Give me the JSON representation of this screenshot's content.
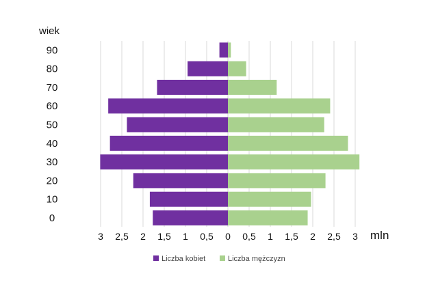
{
  "chart_data": {
    "type": "bar",
    "orientation": "horizontal-population-pyramid",
    "y_axis_title": "wiek",
    "x_unit_label": "mln",
    "categories": [
      "0",
      "10",
      "20",
      "30",
      "40",
      "50",
      "60",
      "70",
      "80",
      "90"
    ],
    "series": [
      {
        "name": "Liczba kobiet",
        "side": "left",
        "color": "#7030a0",
        "values": [
          1.77,
          1.84,
          2.23,
          3.01,
          2.78,
          2.38,
          2.82,
          1.67,
          0.95,
          0.2
        ]
      },
      {
        "name": "Liczba mężczyzn",
        "side": "right",
        "color": "#a9d18e",
        "values": [
          1.88,
          1.96,
          2.3,
          3.1,
          2.83,
          2.27,
          2.41,
          1.15,
          0.43,
          0.07
        ]
      }
    ],
    "x_ticks": [
      "3",
      "2,5",
      "2",
      "1,5",
      "1",
      "0,5",
      "0",
      "0,5",
      "1",
      "1,5",
      "2",
      "2,5",
      "3"
    ],
    "xlim": [
      -3,
      3
    ],
    "grid": "vertical",
    "legend_position": "bottom"
  }
}
